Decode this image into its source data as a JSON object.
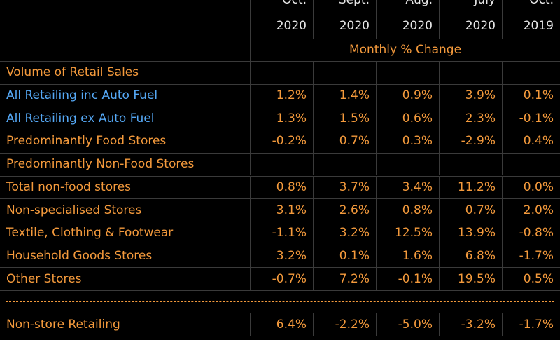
{
  "header": {
    "months": [
      "Oct.",
      "Sept.",
      "Aug.",
      "July",
      "Oct."
    ],
    "years": [
      "2020",
      "2020",
      "2020",
      "2020",
      "2019"
    ],
    "subheader": "Monthly % Change"
  },
  "rows": [
    {
      "label": "Volume of Retail Sales",
      "color": "#f49a3c",
      "values": []
    },
    {
      "label": "All Retailing inc Auto Fuel",
      "color": "#55a8f5",
      "values": [
        "1.2%",
        "1.4%",
        "0.9%",
        "3.9%",
        "0.1%"
      ]
    },
    {
      "label": "All Retailing ex Auto Fuel",
      "color": "#55a8f5",
      "values": [
        "1.3%",
        "1.5%",
        "0.6%",
        "2.3%",
        "-0.1%"
      ]
    },
    {
      "label": "Predominantly Food Stores",
      "color": "#f49a3c",
      "values": [
        "-0.2%",
        "0.7%",
        "0.3%",
        "-2.9%",
        "0.4%"
      ]
    },
    {
      "label": "Predominantly Non-Food Stores",
      "color": "#f49a3c",
      "values": []
    },
    {
      "label": "Total non-food stores",
      "color": "#f49a3c",
      "values": [
        "0.8%",
        "3.7%",
        "3.4%",
        "11.2%",
        "0.0%"
      ]
    },
    {
      "label": "Non-specialised Stores",
      "color": "#f49a3c",
      "values": [
        "3.1%",
        "2.6%",
        "0.8%",
        "0.7%",
        "2.0%"
      ]
    },
    {
      "label": "Textile, Clothing & Footwear",
      "color": "#f49a3c",
      "values": [
        "-1.1%",
        "3.2%",
        "12.5%",
        "13.9%",
        "-0.8%"
      ]
    },
    {
      "label": "Household Goods Stores",
      "color": "#f49a3c",
      "values": [
        "3.2%",
        "0.1%",
        "1.6%",
        "6.8%",
        "-1.7%"
      ]
    },
    {
      "label": "Other Stores",
      "color": "#f49a3c",
      "values": [
        "-0.7%",
        "7.2%",
        "-0.1%",
        "19.5%",
        "0.5%"
      ]
    }
  ],
  "footer_row": {
    "label": "Non-store Retailing",
    "color": "#f49a3c",
    "values": [
      "6.4%",
      "-2.2%",
      "-5.0%",
      "-3.2%",
      "-1.7%"
    ]
  }
}
